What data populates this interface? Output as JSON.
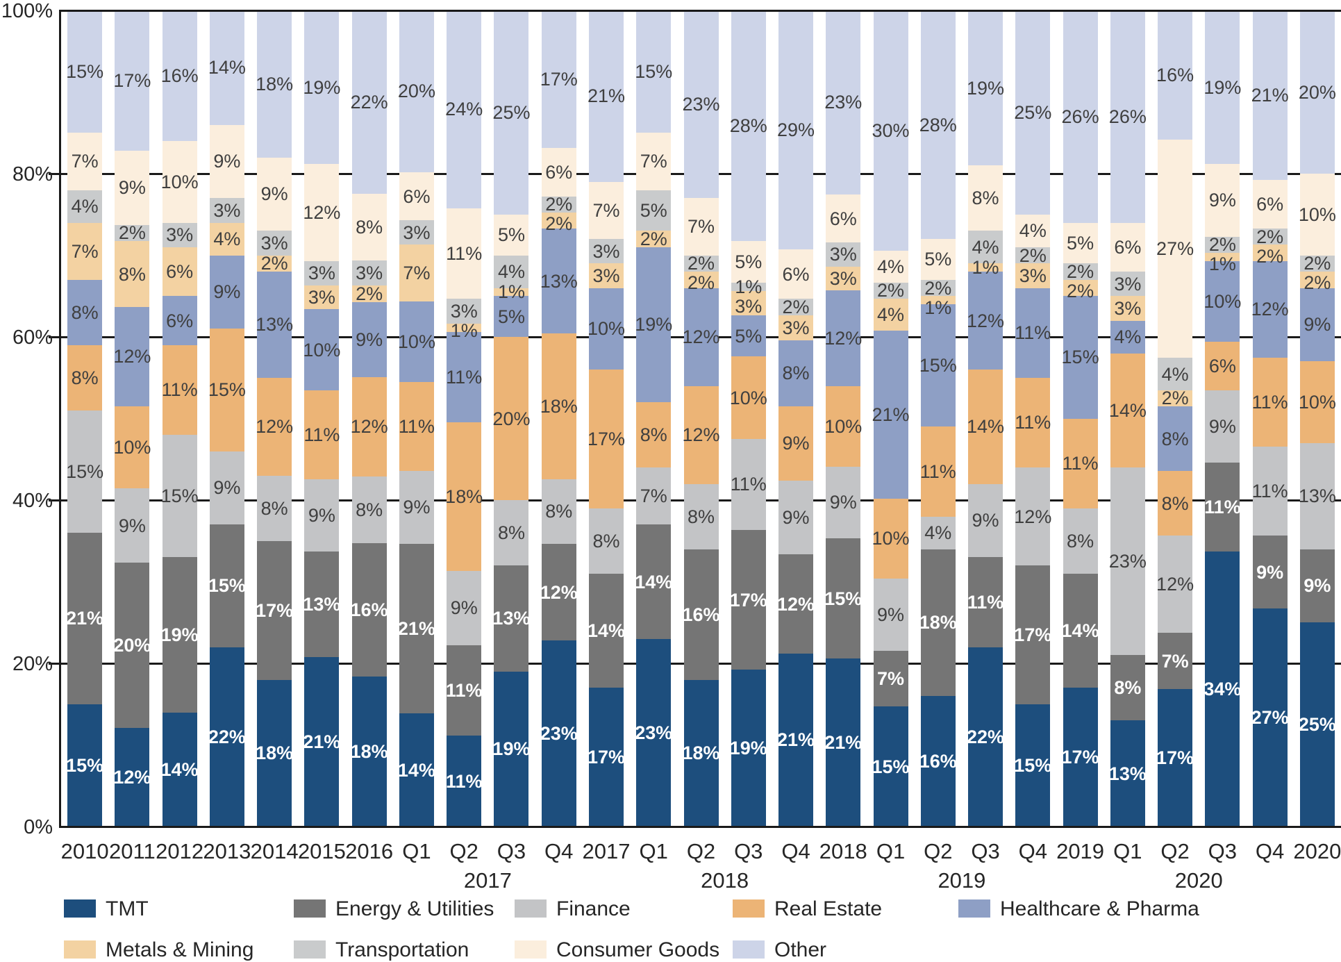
{
  "chart_data": {
    "type": "bar",
    "stacked": true,
    "orientation": "vertical",
    "unit": "%",
    "ylim": [
      0,
      100
    ],
    "yticks": [
      "0%",
      "20%",
      "40%",
      "60%",
      "80%",
      "100%"
    ],
    "grid": true,
    "legend_position": "bottom",
    "categories": [
      "2010",
      "2011",
      "2012",
      "2013",
      "2014",
      "2015",
      "2016",
      "Q1",
      "Q2",
      "Q3",
      "Q4",
      "2017",
      "Q1",
      "Q2",
      "Q3",
      "Q4",
      "2018",
      "Q1",
      "Q2",
      "Q3",
      "Q4",
      "2019",
      "Q1",
      "Q2",
      "Q3",
      "Q4",
      "2020"
    ],
    "group_labels": [
      {
        "label": "2017",
        "between_indexes": [
          8,
          9
        ]
      },
      {
        "label": "2018",
        "between_indexes": [
          13,
          14
        ]
      },
      {
        "label": "2019",
        "between_indexes": [
          18,
          19
        ]
      },
      {
        "label": "2020",
        "between_indexes": [
          23,
          24
        ]
      }
    ],
    "series": [
      {
        "name": "TMT",
        "color": "#1d4e7d",
        "label_color": "light",
        "values": [
          15,
          12,
          14,
          22,
          18,
          21,
          18,
          14,
          11,
          19,
          23,
          17,
          23,
          18,
          19,
          21,
          21,
          15,
          16,
          22,
          15,
          17,
          13,
          17,
          34,
          27,
          25
        ]
      },
      {
        "name": "Energy & Utilities",
        "color": "#757575",
        "label_color": "light",
        "values": [
          21,
          20,
          19,
          15,
          17,
          13,
          16,
          21,
          11,
          13,
          12,
          14,
          14,
          16,
          17,
          12,
          15,
          7,
          18,
          11,
          17,
          14,
          8,
          7,
          11,
          9,
          9
        ]
      },
      {
        "name": "Finance",
        "color": "#c3c4c6",
        "label_color": "dark",
        "values": [
          15,
          9,
          15,
          9,
          8,
          9,
          8,
          9,
          9,
          8,
          8,
          8,
          7,
          8,
          11,
          9,
          9,
          9,
          4,
          9,
          12,
          8,
          23,
          12,
          9,
          11,
          13
        ]
      },
      {
        "name": "Real Estate",
        "color": "#ecb476",
        "label_color": "dark",
        "values": [
          8,
          10,
          11,
          15,
          12,
          11,
          12,
          11,
          18,
          20,
          18,
          17,
          8,
          12,
          10,
          9,
          10,
          10,
          11,
          14,
          11,
          11,
          14,
          8,
          6,
          11,
          10
        ]
      },
      {
        "name": "Healthcare & Pharma",
        "color": "#8e9fc5",
        "label_color": "dark",
        "values": [
          8,
          12,
          6,
          9,
          13,
          10,
          9,
          10,
          11,
          5,
          13,
          10,
          19,
          12,
          5,
          8,
          12,
          21,
          15,
          12,
          11,
          15,
          4,
          8,
          10,
          12,
          9
        ]
      },
      {
        "name": "Metals & Mining",
        "color": "#f3d2a2",
        "label_color": "dark",
        "values": [
          7,
          8,
          6,
          4,
          2,
          3,
          2,
          7,
          1,
          1,
          2,
          3,
          2,
          2,
          3,
          3,
          3,
          4,
          1,
          1,
          3,
          2,
          3,
          2,
          1,
          2,
          2
        ]
      },
      {
        "name": "Transportation",
        "color": "#c9cbcc",
        "label_color": "dark",
        "values": [
          4,
          2,
          3,
          3,
          3,
          3,
          3,
          3,
          3,
          4,
          2,
          3,
          5,
          2,
          1,
          2,
          3,
          2,
          2,
          4,
          2,
          2,
          3,
          4,
          2,
          2,
          2
        ]
      },
      {
        "name": "Consumer Goods",
        "color": "#fbeedd",
        "label_color": "dark",
        "values": [
          7,
          9,
          10,
          9,
          9,
          12,
          8,
          6,
          11,
          5,
          6,
          7,
          7,
          7,
          5,
          6,
          6,
          4,
          5,
          8,
          4,
          5,
          6,
          27,
          9,
          6,
          10
        ]
      },
      {
        "name": "Other",
        "color": "#cdd4e8",
        "label_color": "dark",
        "values": [
          15,
          17,
          16,
          14,
          18,
          19,
          22,
          20,
          24,
          25,
          17,
          21,
          15,
          23,
          28,
          29,
          23,
          30,
          28,
          19,
          25,
          26,
          26,
          16,
          19,
          21,
          20
        ]
      }
    ],
    "legend_rows": [
      [
        "TMT",
        "Energy & Utilities",
        "Finance",
        "Real Estate",
        "Healthcare & Pharma"
      ],
      [
        "Metals & Mining",
        "Transportation",
        "Consumer Goods",
        "Other"
      ]
    ]
  }
}
